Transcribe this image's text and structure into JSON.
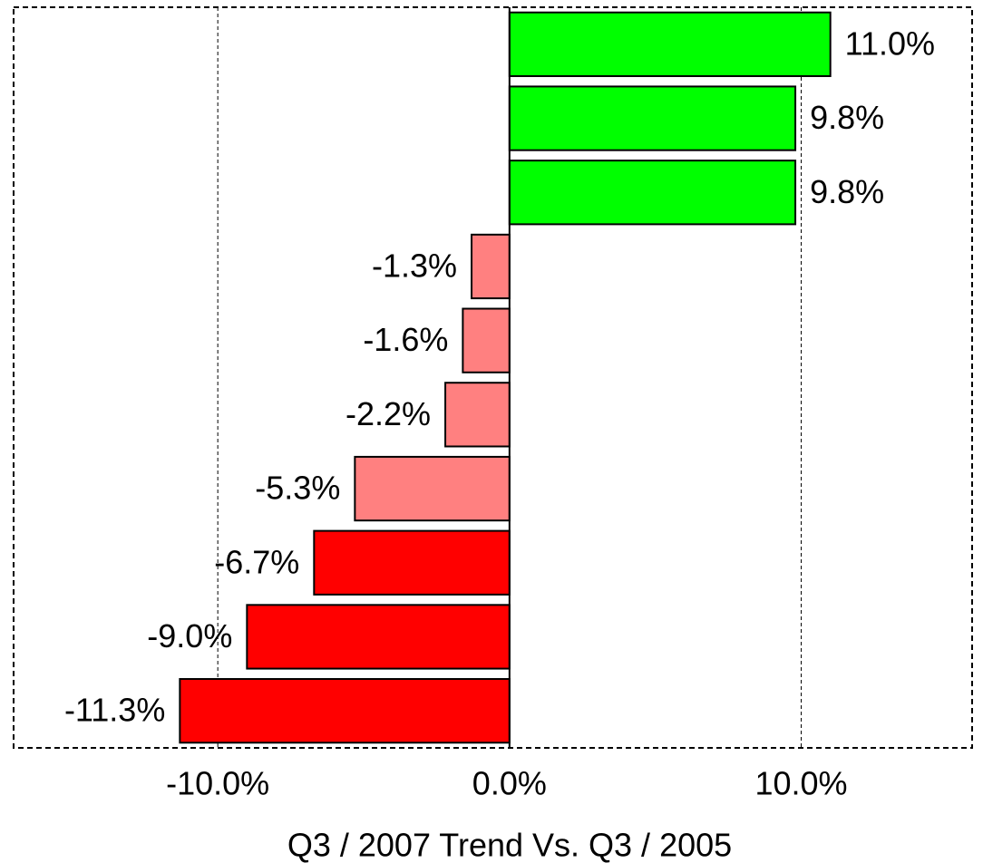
{
  "chart_data": {
    "type": "bar",
    "orientation": "horizontal",
    "xlabel": "Q3 / 2007 Trend Vs. Q3 / 2005",
    "values": [
      11.0,
      9.8,
      9.8,
      -1.3,
      -1.6,
      -2.2,
      -5.3,
      -6.7,
      -9.0,
      -11.3
    ],
    "value_labels": [
      "11.0%",
      "9.8%",
      "9.8%",
      "-1.3%",
      "-1.6%",
      "-2.2%",
      "-5.3%",
      "-6.7%",
      "-9.0%",
      "-11.3%"
    ],
    "colors": [
      "#00ff00",
      "#00ff00",
      "#00ff00",
      "#ff8080",
      "#ff8080",
      "#ff8080",
      "#ff8080",
      "#ff0000",
      "#ff0000",
      "#ff0000"
    ],
    "xlim": [
      -17.0,
      15.86
    ],
    "xticks": [
      {
        "value": -10,
        "label": "-10.0%"
      },
      {
        "value": 0,
        "label": "0.0%"
      },
      {
        "value": 10,
        "label": "10.0%"
      }
    ],
    "grid": true
  }
}
